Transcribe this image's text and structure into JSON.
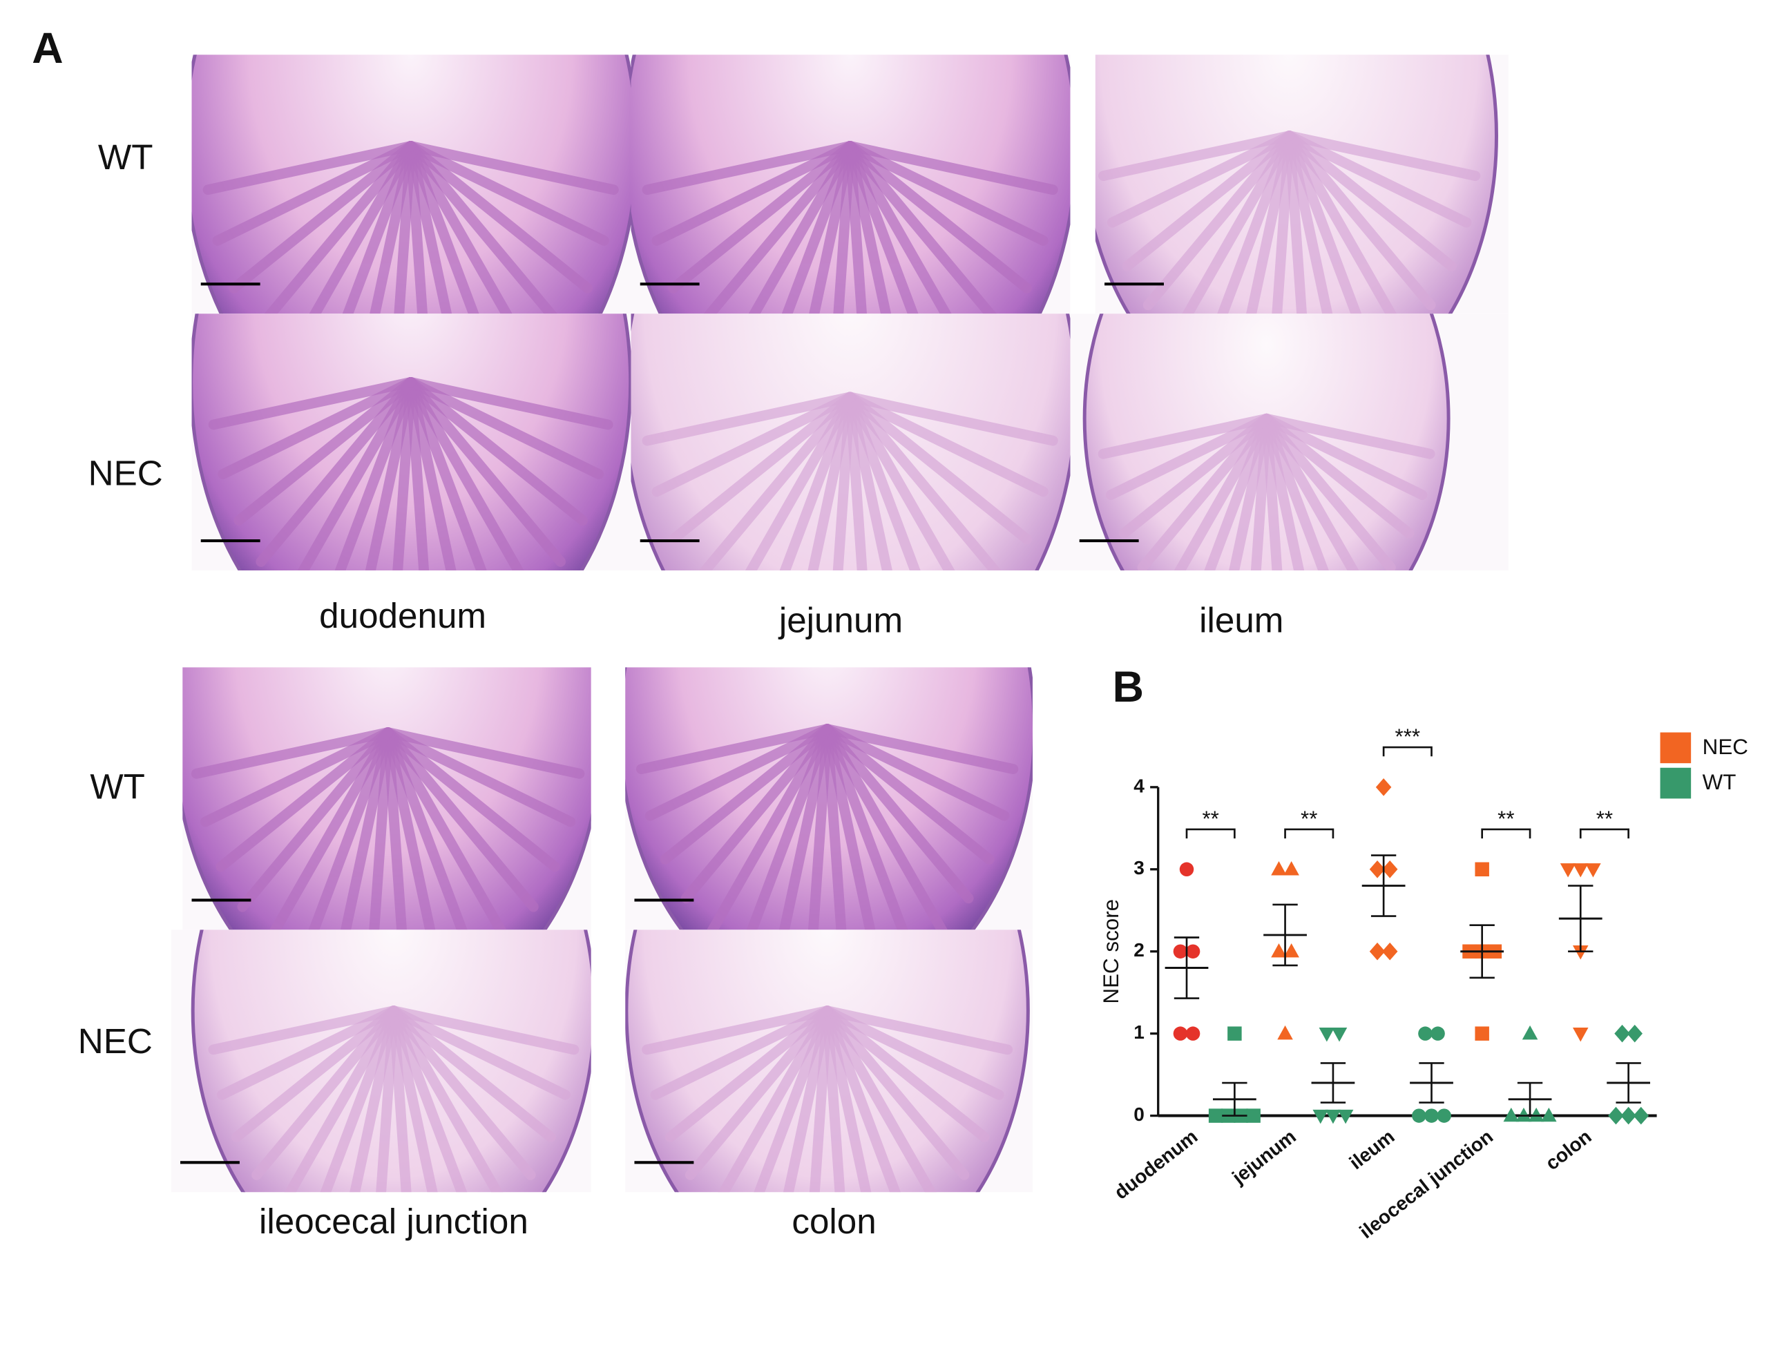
{
  "figure": {
    "panel_a": "A",
    "panel_b": "B",
    "row_labels_top": [
      "WT",
      "NEC"
    ],
    "segments_top": [
      "duodenum",
      "jejunum",
      "ileum"
    ],
    "row_labels_bottom": [
      "WT",
      "NEC"
    ],
    "segments_bottom": [
      "ileocecal junction",
      "colon"
    ]
  },
  "chart_data": {
    "type": "dot",
    "ylabel": "NEC score",
    "categories": [
      "duodenum",
      "jejunum",
      "ileum",
      "ileocecal junction",
      "colon"
    ],
    "ylim": [
      0,
      4
    ],
    "yticks": [
      0,
      1,
      2,
      3,
      4
    ],
    "markers": [
      "circle",
      "triangle",
      "diamond",
      "square",
      "triangle-down"
    ],
    "legend": "upper right",
    "series": [
      {
        "name": "NEC",
        "color": "#f26522",
        "colors": [
          "#e5332a",
          "#f26522",
          "#f26522",
          "#f26522",
          "#f26522"
        ],
        "markers": [
          "circle",
          "triangle",
          "diamond",
          "square",
          "triangle-down"
        ],
        "values": [
          [
            3,
            2,
            2,
            1,
            1
          ],
          [
            3,
            3,
            2,
            2,
            1
          ],
          [
            4,
            3,
            3,
            2,
            2
          ],
          [
            3,
            2,
            2,
            2,
            1
          ],
          [
            3,
            3,
            3,
            2,
            1
          ]
        ],
        "mean": [
          1.8,
          2.2,
          2.8,
          2.0,
          2.4
        ],
        "error": [
          0.37,
          0.37,
          0.37,
          0.32,
          0.4
        ]
      },
      {
        "name": "WT",
        "color": "#37996b",
        "colors": [
          "#37996b",
          "#37996b",
          "#37996b",
          "#37996b",
          "#37996b"
        ],
        "markers": [
          "square",
          "triangle-down",
          "circle",
          "triangle",
          "diamond"
        ],
        "values": [
          [
            1,
            0,
            0,
            0,
            0
          ],
          [
            1,
            1,
            0,
            0,
            0
          ],
          [
            1,
            1,
            0,
            0,
            0
          ],
          [
            1,
            0,
            0,
            0,
            0
          ],
          [
            1,
            1,
            0,
            0,
            0
          ]
        ],
        "mean": [
          0.2,
          0.4,
          0.4,
          0.2,
          0.4
        ],
        "error": [
          0.2,
          0.24,
          0.24,
          0.2,
          0.24
        ]
      }
    ],
    "significance": [
      "**",
      "**",
      "***",
      "**",
      "**"
    ]
  }
}
